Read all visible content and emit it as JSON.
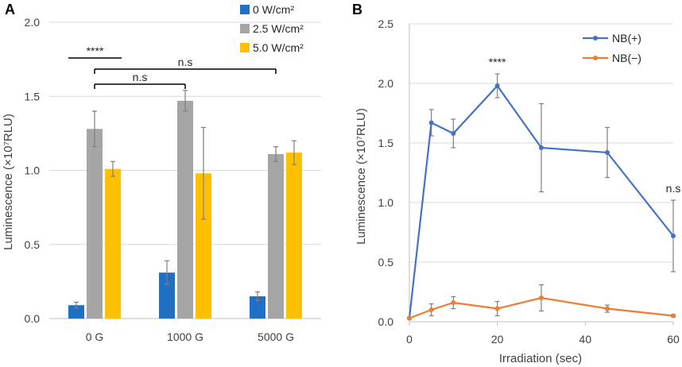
{
  "chart_data": [
    {
      "panel": "A",
      "type": "bar",
      "categories": [
        "0 G",
        "1000 G",
        "5000 G"
      ],
      "ylabel": "Luminescence (×10⁷RLU)",
      "ylim": [
        0,
        2.0
      ],
      "yticks": [
        "0.0",
        "0.5",
        "1.0",
        "1.5",
        "2.0"
      ],
      "grid": true,
      "legend_position": "top-right",
      "series": [
        {
          "name": "0 W/cm²",
          "color": "#1f6fc5",
          "values": [
            0.09,
            0.31,
            0.15
          ],
          "errors": [
            0.02,
            0.08,
            0.03
          ]
        },
        {
          "name": "2.5 W/cm²",
          "color": "#a5a5a5",
          "values": [
            1.28,
            1.47,
            1.11
          ],
          "errors": [
            0.12,
            0.07,
            0.05
          ]
        },
        {
          "name": "5.0 W/cm²",
          "color": "#ffc000",
          "values": [
            1.01,
            0.98,
            1.12
          ],
          "errors": [
            0.05,
            0.31,
            0.08
          ]
        }
      ],
      "annotations": [
        {
          "text": "****",
          "from_category": 0,
          "to_category": 0
        },
        {
          "text": "n.s",
          "from_category": 0,
          "to_category": 2
        },
        {
          "text": "n.s",
          "from_category": 0,
          "to_category": 1
        }
      ]
    },
    {
      "panel": "B",
      "type": "line",
      "xlabel": "Irradiation (sec)",
      "ylabel": "Luminescence (×10⁷RLU)",
      "xlim": [
        0,
        60
      ],
      "ylim": [
        0,
        2.5
      ],
      "xticks": [
        "0",
        "20",
        "40",
        "60"
      ],
      "yticks": [
        "0.0",
        "0.5",
        "1.0",
        "1.5",
        "2.0",
        "2.5"
      ],
      "grid": true,
      "legend_position": "top-right",
      "x": [
        0,
        5,
        10,
        20,
        30,
        45,
        60
      ],
      "series": [
        {
          "name": "NB(+)",
          "color": "#4472c4",
          "values": [
            0.03,
            1.67,
            1.58,
            1.98,
            1.46,
            1.42,
            0.72
          ],
          "errors": [
            0.0,
            0.11,
            0.12,
            0.1,
            0.37,
            0.21,
            0.3
          ]
        },
        {
          "name": "NB(−)",
          "color": "#ed7d31",
          "values": [
            0.03,
            0.1,
            0.16,
            0.11,
            0.2,
            0.11,
            0.05
          ],
          "errors": [
            0.0,
            0.05,
            0.05,
            0.06,
            0.11,
            0.03,
            0.01
          ]
        }
      ],
      "annotations": [
        {
          "text": "****",
          "at_x": 20
        },
        {
          "text": "n.s",
          "at_x": 60
        }
      ]
    }
  ]
}
